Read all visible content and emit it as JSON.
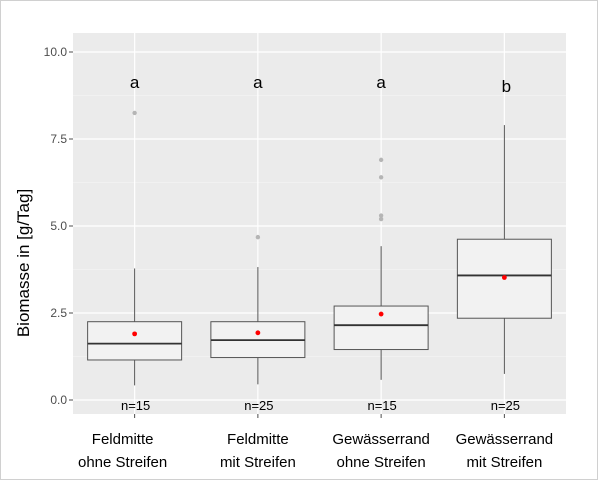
{
  "chart_data": {
    "type": "boxplot",
    "ylabel": "Biomasse in [g/Tag]",
    "ylim": [
      -0.4,
      10.6
    ],
    "yticks": [
      0.0,
      2.5,
      5.0,
      7.5,
      10.0
    ],
    "ytick_labels": [
      "0.0",
      "2.5",
      "5.0",
      "7.5",
      "10.0"
    ],
    "grid": true,
    "categories": [
      [
        "Feldmitte",
        "ohne Streifen"
      ],
      [
        "Feldmitte",
        "mit Streifen"
      ],
      [
        "Gewässerrand",
        "ohne Streifen"
      ],
      [
        "Gewässerrand",
        "mit Streifen"
      ]
    ],
    "boxes": [
      {
        "q1": 1.15,
        "median": 1.62,
        "q3": 2.25,
        "whisker_low": 0.42,
        "whisker_high": 3.78,
        "mean": 1.9,
        "outliers": [
          8.25
        ],
        "letter": "a",
        "n_label": "n=15"
      },
      {
        "q1": 1.22,
        "median": 1.72,
        "q3": 2.25,
        "whisker_low": 0.45,
        "whisker_high": 3.82,
        "mean": 1.93,
        "outliers": [
          4.68
        ],
        "letter": "a",
        "n_label": "n=25"
      },
      {
        "q1": 1.45,
        "median": 2.15,
        "q3": 2.7,
        "whisker_low": 0.58,
        "whisker_high": 4.42,
        "mean": 2.47,
        "outliers": [
          5.2,
          5.3,
          6.4,
          6.9
        ],
        "letter": "a",
        "n_label": "n=15"
      },
      {
        "q1": 2.35,
        "median": 3.58,
        "q3": 4.62,
        "whisker_low": 0.75,
        "whisker_high": 7.9,
        "mean": 3.52,
        "outliers": [],
        "letter": "b",
        "n_label": "n=25"
      }
    ],
    "colors": {
      "panel": "#ebebeb",
      "grid_major": "#ffffff",
      "grid_minor": "#f3f3f3",
      "box_fill": "#f2f2f2",
      "box_stroke": "#555555",
      "median": "#333333",
      "mean": "#ff0000",
      "outlier": "#b5b5b5",
      "tick_text": "#4d4d4d"
    }
  }
}
